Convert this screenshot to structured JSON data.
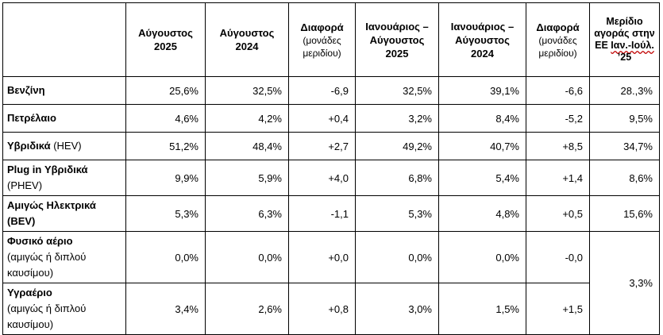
{
  "table": {
    "headers": {
      "label_col": "",
      "col1": "Αύγουστος 2025",
      "col2": "Αύγουστος 2024",
      "col3_main": "Διαφορά",
      "col3_sub": "(μονάδες μεριδίου)",
      "col4": "Ιανουάριος – Αύγουστος 2025",
      "col5": "Ιανουάριος – Αύγουστος 2024",
      "col6_main": "Διαφορά",
      "col6_sub": "(μονάδες μεριδίου)",
      "col7_line1": "Μερίδιο αγοράς στην ΕΕ",
      "col7_squig": "Ιαν.-Ιούλ.",
      "col7_line2": "’25"
    },
    "rows": [
      {
        "label_main": "Βενζίνη",
        "label_sub": "",
        "cells": [
          "25,6%",
          "32,5%",
          "-6,9",
          "32,5%",
          "39,1%",
          "-6,6",
          "28.,3%"
        ]
      },
      {
        "label_main": "Πετρέλαιο",
        "label_sub": "",
        "cells": [
          "4,6%",
          "4,2%",
          "+0,4",
          "3,2%",
          "8,4%",
          "-5,2",
          "9,5%"
        ]
      },
      {
        "label_main": "Υβριδικά",
        "label_sub": " (HEV)",
        "cells": [
          "51,2%",
          "48,4%",
          "+2,7",
          "49,2%",
          "40,7%",
          "+8,5",
          "34,7%"
        ]
      },
      {
        "label_main": "Plug in Υβριδικά",
        "label_sub": "(PHEV)",
        "cells": [
          "9,9%",
          "5,9%",
          "+4,0",
          "6,8%",
          "5,4%",
          "+1,4",
          "8,6%"
        ]
      },
      {
        "label_main": "Αμιγώς Ηλεκτρικά",
        "label_sub": "(BEV)",
        "cells": [
          "5,3%",
          "6,3%",
          "-1,1",
          "5,3%",
          "4,8%",
          "+0,5",
          "15,6%"
        ]
      },
      {
        "label_main": "Φυσικό αέριο",
        "label_sub": "(αμιγώς ή διπλού καυσίμου)",
        "cells": [
          "0,0%",
          "0,0%",
          "+0,0",
          "0,0%",
          "0,0%",
          "-0,0"
        ]
      },
      {
        "label_main": "Υγραέριο",
        "label_sub": "(αμιγώς ή διπλού καυσίμου)",
        "cells": [
          "3,4%",
          "2,6%",
          "+0,8",
          "3,0%",
          "1,5%",
          "+1,5"
        ]
      }
    ],
    "merged_last_cell": "3,3%"
  }
}
